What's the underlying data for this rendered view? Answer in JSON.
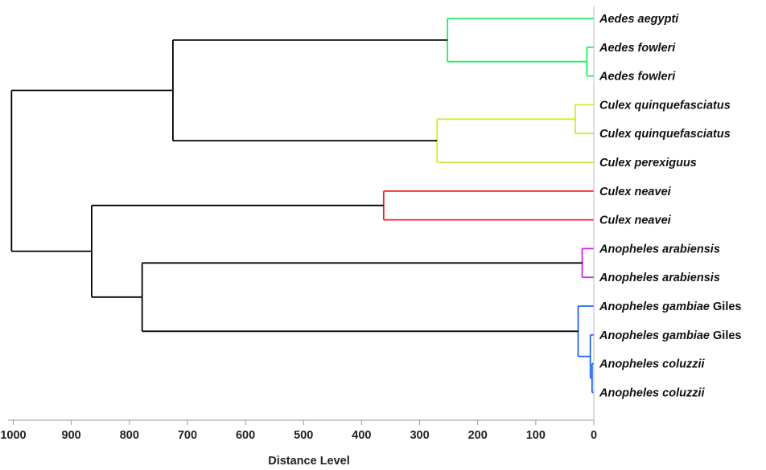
{
  "chart_data": {
    "type": "dendrogram",
    "xlabel": "Distance Level",
    "xlim": [
      1050,
      0
    ],
    "ticks": [
      1000,
      900,
      800,
      700,
      600,
      500,
      400,
      300,
      200,
      100,
      0
    ],
    "grid": false,
    "leaves": [
      {
        "genus": "Aedes aegypti",
        "suffix": "",
        "color": "#22ee66"
      },
      {
        "genus": "Aedes fowleri",
        "suffix": "",
        "color": "#22ee66"
      },
      {
        "genus": "Aedes fowleri",
        "suffix": "",
        "color": "#22ee66"
      },
      {
        "genus": "Culex quinquefasciatus",
        "suffix": "",
        "color": "#ccee33"
      },
      {
        "genus": "Culex quinquefasciatus",
        "suffix": "",
        "color": "#ccee33"
      },
      {
        "genus": "Culex perexiguus",
        "suffix": "",
        "color": "#ccee33"
      },
      {
        "genus": "Culex neavei",
        "suffix": "",
        "color": "#ee2222"
      },
      {
        "genus": "Culex neavei",
        "suffix": "",
        "color": "#ee2222"
      },
      {
        "genus": "Anopheles arabiensis",
        "suffix": "",
        "color": "#cc22ee"
      },
      {
        "genus": "Anopheles arabiensis",
        "suffix": "",
        "color": "#cc22ee"
      },
      {
        "genus": "Anopheles gambiae",
        "suffix": "Giles",
        "color": "#2266ee"
      },
      {
        "genus": "Anopheles gambiae",
        "suffix": "Giles",
        "color": "#2266ee"
      },
      {
        "genus": "Anopheles coluzzii",
        "suffix": "",
        "color": "#2266ee"
      },
      {
        "genus": "Anopheles coluzzii",
        "suffix": "",
        "color": "#2266ee"
      }
    ],
    "merges": [
      {
        "a": 1,
        "b": 2,
        "height": 12,
        "color": "#22ee66"
      },
      {
        "a": 0,
        "b": 14,
        "height": 252,
        "color": "#22ee66"
      },
      {
        "a": 3,
        "b": 4,
        "height": 32,
        "color": "#ccee33"
      },
      {
        "a": 16,
        "b": 5,
        "height": 270,
        "color": "#ccee33"
      },
      {
        "a": 15,
        "b": 17,
        "height": 725,
        "color": "#000000"
      },
      {
        "a": 6,
        "b": 7,
        "height": 362,
        "color": "#ee2222"
      },
      {
        "a": 8,
        "b": 9,
        "height": 20,
        "color": "#cc22ee"
      },
      {
        "a": 12,
        "b": 13,
        "height": 3,
        "color": "#2266ee"
      },
      {
        "a": 11,
        "b": 21,
        "height": 6,
        "color": "#2266ee"
      },
      {
        "a": 10,
        "b": 22,
        "height": 27,
        "color": "#2266ee"
      },
      {
        "a": 20,
        "b": 23,
        "height": 778,
        "color": "#000000"
      },
      {
        "a": 19,
        "b": 24,
        "height": 865,
        "color": "#000000"
      },
      {
        "a": 18,
        "b": 25,
        "height": 1003,
        "color": "#000000"
      }
    ]
  }
}
